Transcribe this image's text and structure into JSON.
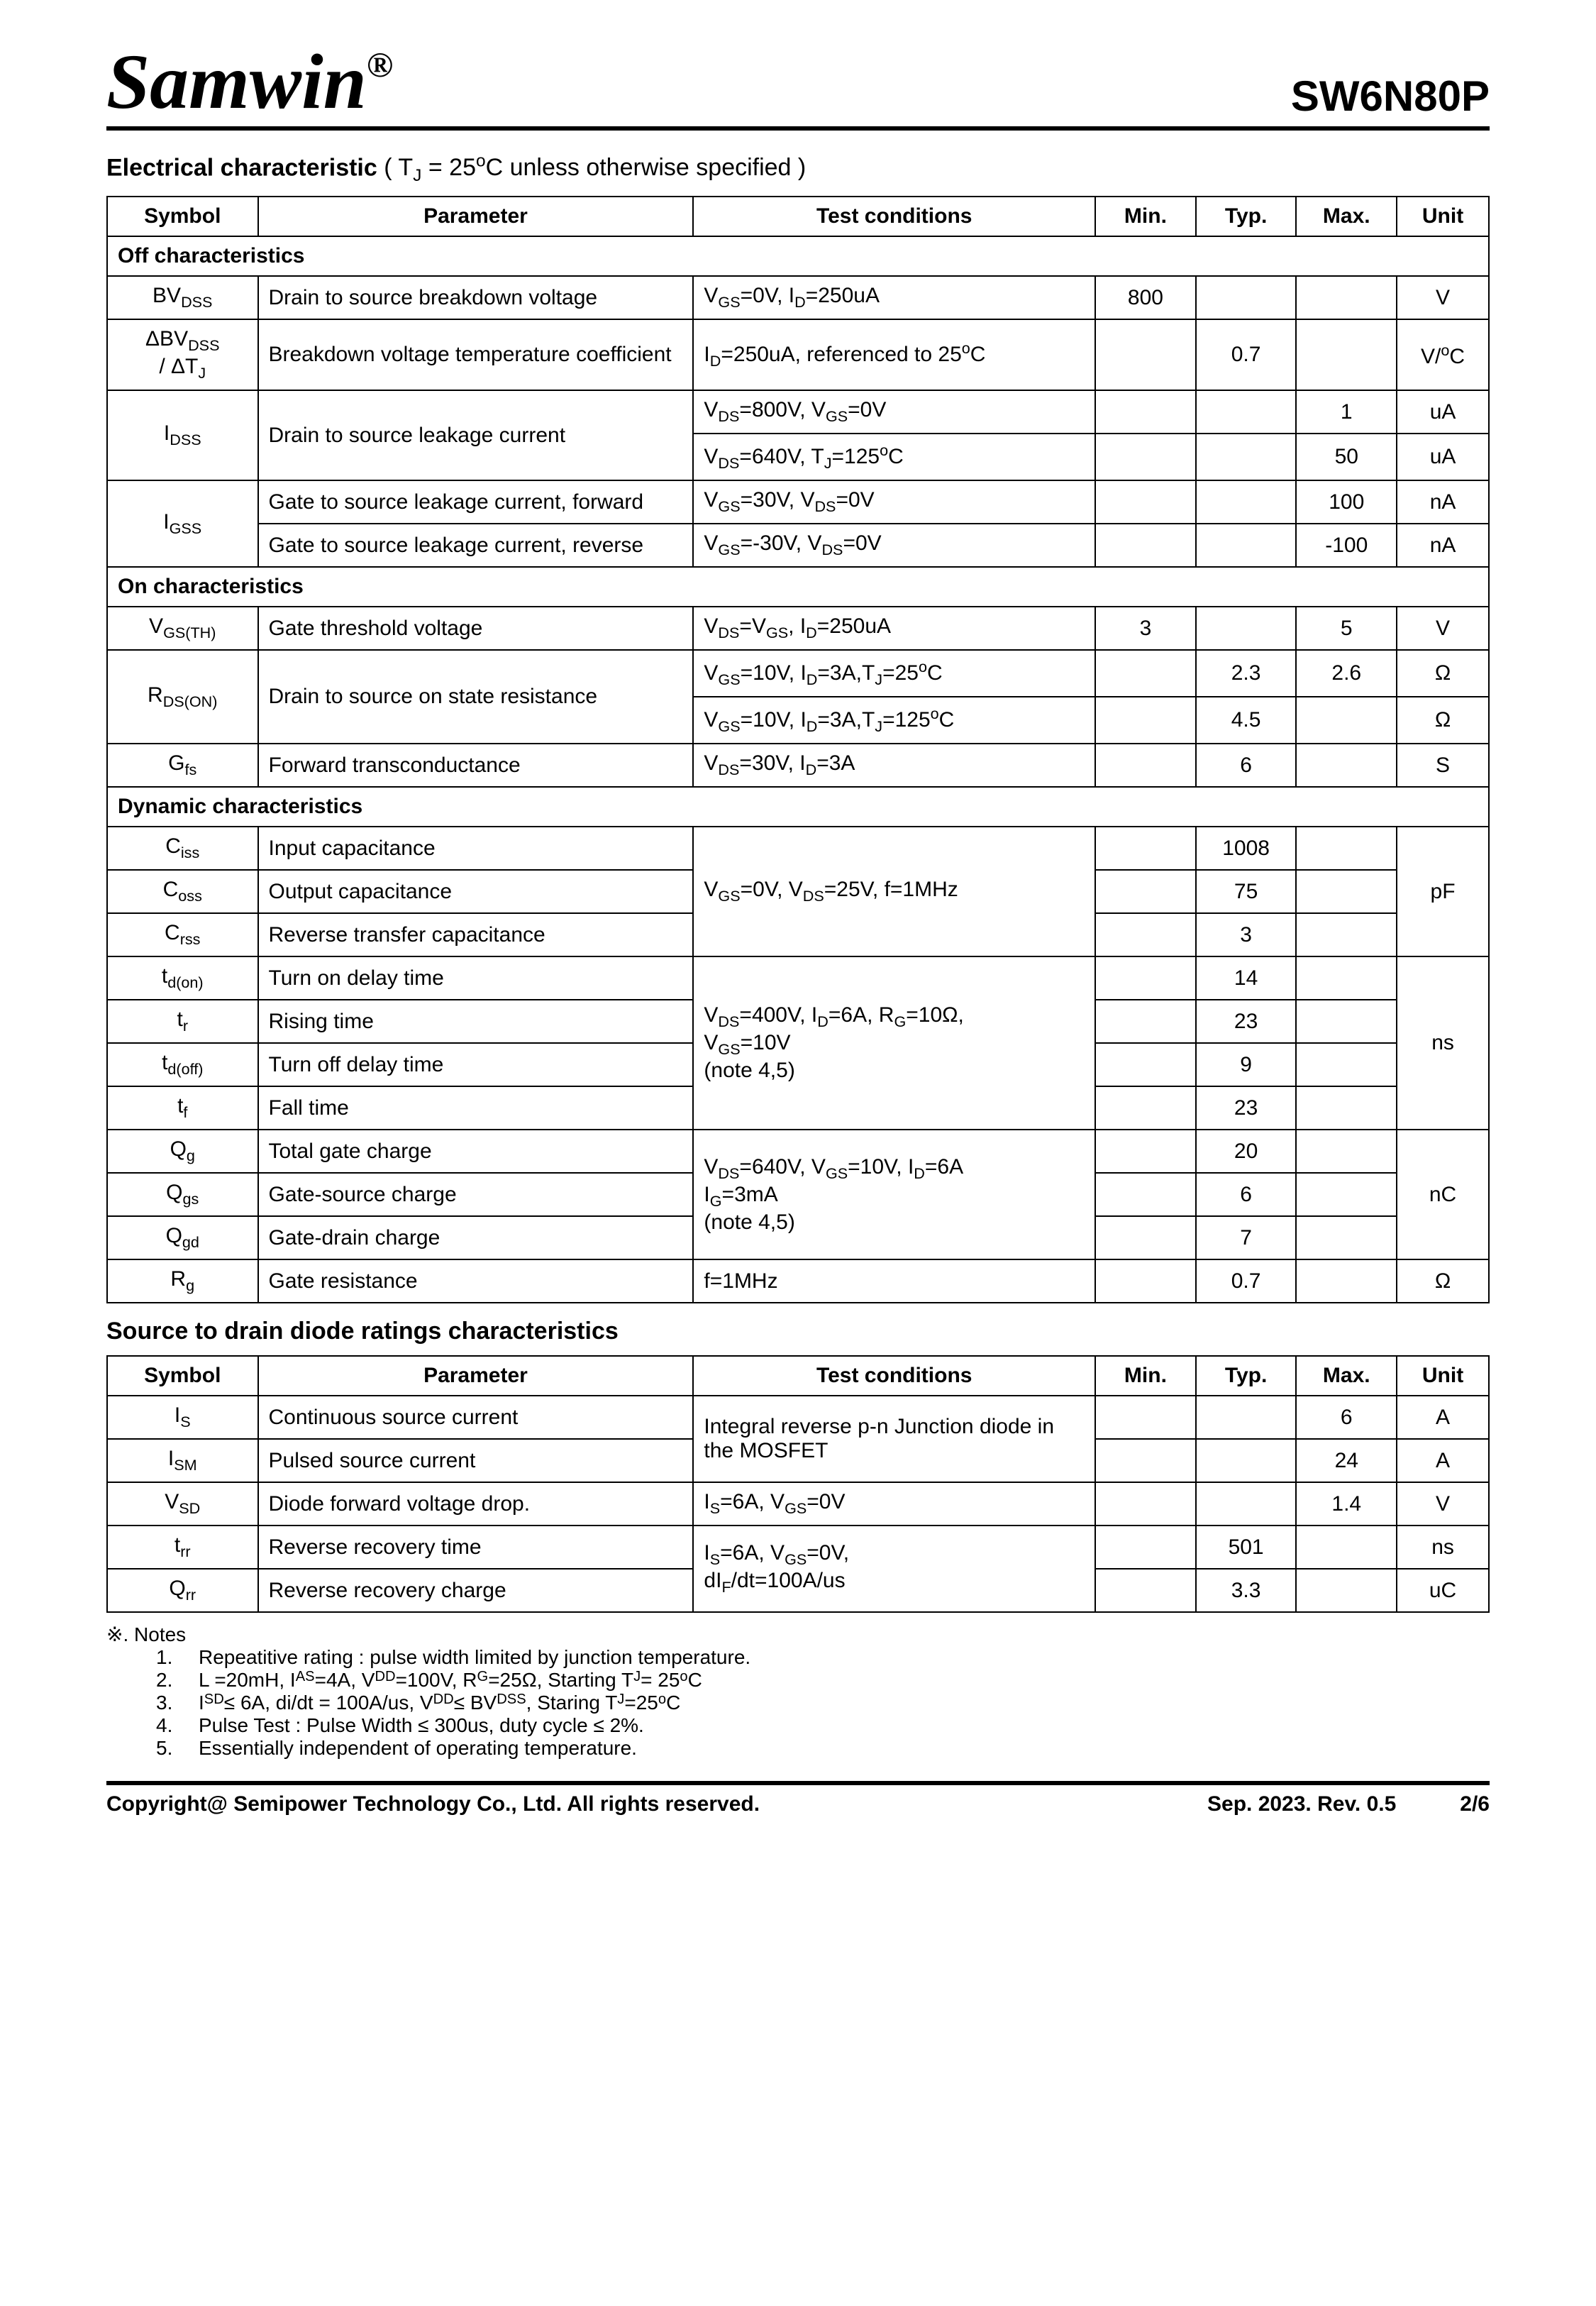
{
  "brand": "Samwin",
  "reg": "®",
  "part": "SW6N80P",
  "section1": {
    "title_bold": "Electrical characteristic",
    "title_rest": " ( T<sub>J</sub> = 25<sup>o</sup>C unless otherwise specified )"
  },
  "headers": [
    "Symbol",
    "Parameter",
    "Test conditions",
    "Min.",
    "Typ.",
    "Max.",
    "Unit"
  ],
  "colwidths": [
    "180",
    "520",
    "480",
    "120",
    "120",
    "120",
    "110"
  ],
  "groups": [
    {
      "label": "Off characteristics",
      "rows": [
        {
          "sym": "BV<sub>DSS</sub>",
          "param": "Drain to source breakdown voltage",
          "tc": "V<sub>GS</sub>=0V, I<sub>D</sub>=250uA",
          "min": "800",
          "typ": "",
          "max": "",
          "unit": "V"
        },
        {
          "sym": "ΔBV<sub>DSS</sub><br>/ ΔT<sub>J</sub>",
          "param": "Breakdown voltage temperature coefficient",
          "tc": "I<sub>D</sub>=250uA, referenced to 25<sup>o</sup>C",
          "min": "",
          "typ": "0.7",
          "max": "",
          "unit": "V/<sup>o</sup>C"
        },
        {
          "sym": "I<sub>DSS</sub>",
          "symRowspan": 2,
          "param": "Drain to source leakage current",
          "paramRowspan": 2,
          "tc": "V<sub>DS</sub>=800V, V<sub>GS</sub>=0V",
          "min": "",
          "typ": "",
          "max": "1",
          "unit": "uA"
        },
        {
          "tc": "V<sub>DS</sub>=640V, T<sub>J</sub>=125<sup>o</sup>C",
          "min": "",
          "typ": "",
          "max": "50",
          "unit": "uA"
        },
        {
          "sym": "I<sub>GSS</sub>",
          "symRowspan": 2,
          "param": "Gate to source leakage current, forward",
          "tc": "V<sub>GS</sub>=30V, V<sub>DS</sub>=0V",
          "min": "",
          "typ": "",
          "max": "100",
          "unit": "nA"
        },
        {
          "param": "Gate to source leakage current, reverse",
          "tc": "V<sub>GS</sub>=-30V, V<sub>DS</sub>=0V",
          "min": "",
          "typ": "",
          "max": "-100",
          "unit": "nA"
        }
      ]
    },
    {
      "label": "On characteristics",
      "rows": [
        {
          "sym": "V<sub>GS(TH)</sub>",
          "param": "Gate threshold voltage",
          "tc": "V<sub>DS</sub>=V<sub>GS</sub>, I<sub>D</sub>=250uA",
          "min": "3",
          "typ": "",
          "max": "5",
          "unit": "V"
        },
        {
          "sym": "R<sub>DS(ON)</sub>",
          "symRowspan": 2,
          "param": "Drain to source on state resistance",
          "paramRowspan": 2,
          "tc": "V<sub>GS</sub>=10V, I<sub>D</sub>=3A,T<sub>J</sub>=25<sup>o</sup>C",
          "min": "",
          "typ": "2.3",
          "max": "2.6",
          "unit": "Ω"
        },
        {
          "tc": "V<sub>GS</sub>=10V, I<sub>D</sub>=3A,T<sub>J</sub>=125<sup>o</sup>C",
          "min": "",
          "typ": "4.5",
          "max": "",
          "unit": "Ω"
        },
        {
          "sym": "G<sub>fs</sub>",
          "param": "Forward transconductance",
          "tc": "V<sub>DS</sub>=30V, I<sub>D</sub>=3A",
          "min": "",
          "typ": "6",
          "max": "",
          "unit": "S"
        }
      ]
    },
    {
      "label": "Dynamic characteristics",
      "rows": [
        {
          "sym": "C<sub>iss</sub>",
          "param": "Input capacitance",
          "tc": "V<sub>GS</sub>=0V, V<sub>DS</sub>=25V, f=1MHz",
          "tcRowspan": 3,
          "min": "",
          "typ": "1008",
          "max": "",
          "unit": "pF",
          "unitRowspan": 3
        },
        {
          "sym": "C<sub>oss</sub>",
          "param": "Output capacitance",
          "min": "",
          "typ": "75",
          "max": ""
        },
        {
          "sym": "C<sub>rss</sub>",
          "param": "Reverse transfer capacitance",
          "min": "",
          "typ": "3",
          "max": ""
        },
        {
          "sym": "t<sub>d(on)</sub>",
          "param": "Turn on delay time",
          "tc": "V<sub>DS</sub>=400V, I<sub>D</sub>=6A, R<sub>G</sub>=10Ω,<br>V<sub>GS</sub>=10V<br>(note 4,5)",
          "tcRowspan": 4,
          "min": "",
          "typ": "14",
          "max": "",
          "unit": "ns",
          "unitRowspan": 4
        },
        {
          "sym": "t<sub>r</sub>",
          "param": "Rising time",
          "min": "",
          "typ": "23",
          "max": ""
        },
        {
          "sym": "t<sub>d(off)</sub>",
          "param": "Turn off delay time",
          "min": "",
          "typ": "9",
          "max": ""
        },
        {
          "sym": "t<sub>f</sub>",
          "param": "Fall time",
          "min": "",
          "typ": "23",
          "max": ""
        },
        {
          "sym": "Q<sub>g</sub>",
          "param": "Total gate charge",
          "tc": "V<sub>DS</sub>=640V, V<sub>GS</sub>=10V, I<sub>D</sub>=6A<br>I<sub>G</sub>=3mA<br>(note 4,5)",
          "tcRowspan": 3,
          "min": "",
          "typ": "20",
          "max": "",
          "unit": "nC",
          "unitRowspan": 3
        },
        {
          "sym": "Q<sub>gs</sub>",
          "param": "Gate-source charge",
          "min": "",
          "typ": "6",
          "max": ""
        },
        {
          "sym": "Q<sub>gd</sub>",
          "param": "Gate-drain charge",
          "min": "",
          "typ": "7",
          "max": ""
        },
        {
          "sym": "R<sub>g</sub>",
          "param": "Gate resistance",
          "tc": "f=1MHz",
          "min": "",
          "typ": "0.7",
          "max": "",
          "unit": "Ω"
        }
      ]
    }
  ],
  "section2_title": "Source to drain diode ratings characteristics",
  "table2": [
    {
      "sym": "I<sub>S</sub>",
      "param": "Continuous source current",
      "tc": "Integral reverse p-n Junction diode in the MOSFET",
      "tcRowspan": 2,
      "min": "",
      "typ": "",
      "max": "6",
      "unit": "A"
    },
    {
      "sym": "I<sub>SM</sub>",
      "param": "Pulsed source current",
      "min": "",
      "typ": "",
      "max": "24",
      "unit": "A"
    },
    {
      "sym": "V<sub>SD</sub>",
      "param": "Diode forward voltage drop.",
      "tc": "I<sub>S</sub>=6A, V<sub>GS</sub>=0V",
      "min": "",
      "typ": "",
      "max": "1.4",
      "unit": "V"
    },
    {
      "sym": "t<sub>rr</sub>",
      "param": "Reverse recovery time",
      "tc": "I<sub>S</sub>=6A, V<sub>GS</sub>=0V,<br>dI<sub>F</sub>/dt=100A/us",
      "tcRowspan": 2,
      "min": "",
      "typ": "501",
      "max": "",
      "unit": "ns"
    },
    {
      "sym": "Q<sub>rr</sub>",
      "param": "Reverse recovery charge",
      "min": "",
      "typ": "3.3",
      "max": "",
      "unit": "uC"
    }
  ],
  "notes": {
    "title": "※. Notes",
    "items": [
      "Repeatitive rating : pulse width limited by junction temperature.",
      "L =20mH, I<sub>AS</sub> =4A, V<sub>DD</sub>=100V, R<sub>G</sub>=25Ω, Starting T<sub>J</sub> = 25<sup>o</sup>C",
      "I<sub>SD</sub> ≤ 6A, di/dt = 100A/us, V<sub>DD</sub> ≤ BV<sub>DSS</sub>, Staring T<sub>J</sub> =25<sup>o</sup>C",
      "Pulse Test : Pulse Width ≤ 300us, duty cycle ≤ 2%.",
      "Essentially independent of operating temperature."
    ]
  },
  "footer": {
    "left": "Copyright@ Semipower Technology Co., Ltd. All rights reserved.",
    "date": "Sep. 2023. Rev. 0.5",
    "page": "2/6"
  }
}
